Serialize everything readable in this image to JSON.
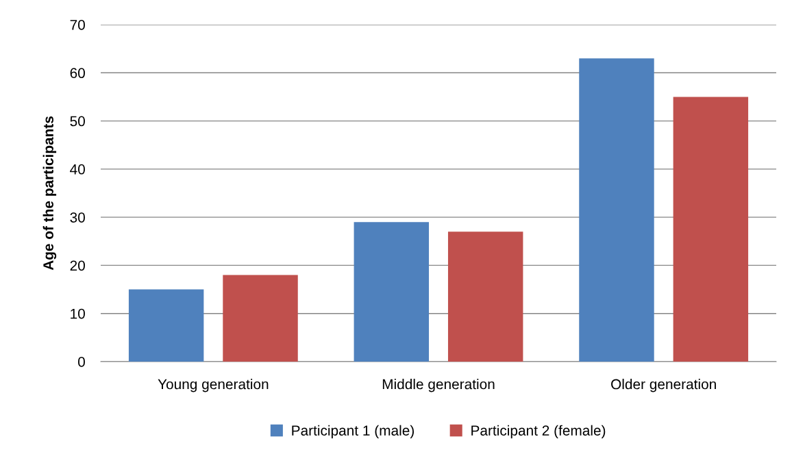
{
  "chart_data": {
    "type": "bar",
    "ylabel": "Age of the participants",
    "categories": [
      "Young generation",
      "Middle generation",
      "Older generation"
    ],
    "series": [
      {
        "name": "Participant 1 (male)",
        "color": "#4f81bd",
        "values": [
          15,
          29,
          63
        ]
      },
      {
        "name": "Participant 2 (female)",
        "color": "#c0504d",
        "values": [
          18,
          27,
          55
        ]
      }
    ],
    "ylim": [
      0,
      70
    ],
    "yticks": [
      0,
      10,
      20,
      30,
      40,
      50,
      60,
      70
    ],
    "grid": "y",
    "legend": "bottom"
  }
}
